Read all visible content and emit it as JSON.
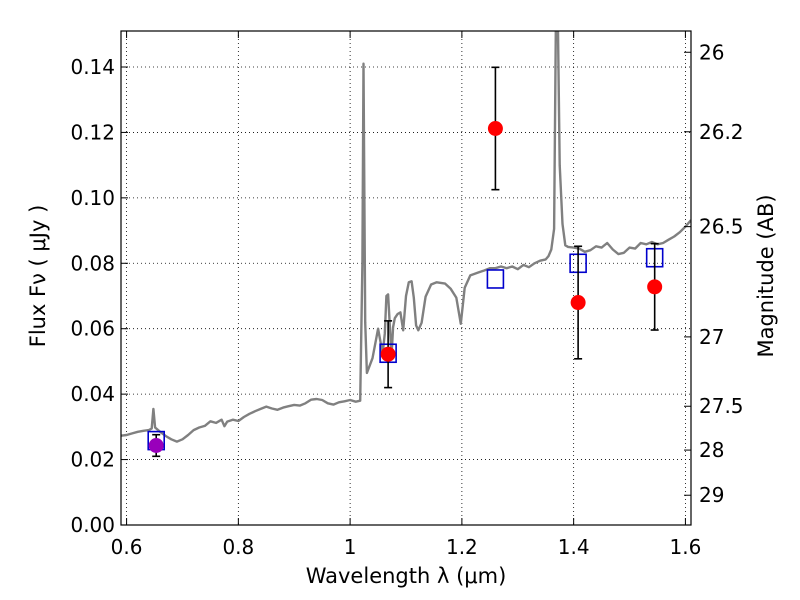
{
  "chart_data": {
    "type": "scatter",
    "xlabel": "Wavelength  λ (μm)",
    "ylabel": "Flux  Fν  ( μJy )",
    "y2label": "Magnitude (AB)",
    "xlim": [
      0.59,
      1.61
    ],
    "ylim": [
      0.0,
      0.151
    ],
    "grid": true,
    "x_ticks": [
      {
        "value": 0.6,
        "label": "0.6"
      },
      {
        "value": 0.8,
        "label": "0.8"
      },
      {
        "value": 1.0,
        "label": "1"
      },
      {
        "value": 1.2,
        "label": "1.2"
      },
      {
        "value": 1.4,
        "label": "1.4"
      },
      {
        "value": 1.6,
        "label": "1.6"
      }
    ],
    "y_ticks": [
      {
        "value": 0.0,
        "label": "0.00"
      },
      {
        "value": 0.02,
        "label": "0.02"
      },
      {
        "value": 0.04,
        "label": "0.04"
      },
      {
        "value": 0.06,
        "label": "0.06"
      },
      {
        "value": 0.08,
        "label": "0.08"
      },
      {
        "value": 0.1,
        "label": "0.10"
      },
      {
        "value": 0.12,
        "label": "0.12"
      },
      {
        "value": 0.14,
        "label": "0.14"
      }
    ],
    "y2_ticks": [
      {
        "flux": 0.1445,
        "label": "26"
      },
      {
        "flux": 0.1202,
        "label": "26.2"
      },
      {
        "flux": 0.0912,
        "label": "26.5"
      },
      {
        "flux": 0.0575,
        "label": "27"
      },
      {
        "flux": 0.0363,
        "label": "27.5"
      },
      {
        "flux": 0.0229,
        "label": "28"
      },
      {
        "flux": 0.0091,
        "label": "29"
      }
    ],
    "series": [
      {
        "kind": "spectrum",
        "color": "#808080",
        "points": [
          [
            0.59,
            0.0273
          ],
          [
            0.6,
            0.0275
          ],
          [
            0.61,
            0.028
          ],
          [
            0.62,
            0.0285
          ],
          [
            0.63,
            0.0288
          ],
          [
            0.64,
            0.029
          ],
          [
            0.645,
            0.0295
          ],
          [
            0.648,
            0.0355
          ],
          [
            0.651,
            0.0298
          ],
          [
            0.66,
            0.0285
          ],
          [
            0.67,
            0.0272
          ],
          [
            0.68,
            0.0262
          ],
          [
            0.69,
            0.0255
          ],
          [
            0.7,
            0.0262
          ],
          [
            0.71,
            0.0275
          ],
          [
            0.72,
            0.029
          ],
          [
            0.73,
            0.0298
          ],
          [
            0.74,
            0.0303
          ],
          [
            0.75,
            0.0317
          ],
          [
            0.76,
            0.0312
          ],
          [
            0.77,
            0.0322
          ],
          [
            0.775,
            0.0302
          ],
          [
            0.78,
            0.0316
          ],
          [
            0.79,
            0.0322
          ],
          [
            0.8,
            0.0318
          ],
          [
            0.81,
            0.033
          ],
          [
            0.82,
            0.034
          ],
          [
            0.83,
            0.0348
          ],
          [
            0.84,
            0.0355
          ],
          [
            0.85,
            0.0362
          ],
          [
            0.86,
            0.0356
          ],
          [
            0.87,
            0.0352
          ],
          [
            0.88,
            0.0359
          ],
          [
            0.89,
            0.0363
          ],
          [
            0.9,
            0.0367
          ],
          [
            0.91,
            0.0365
          ],
          [
            0.92,
            0.0372
          ],
          [
            0.93,
            0.0383
          ],
          [
            0.94,
            0.0385
          ],
          [
            0.95,
            0.0382
          ],
          [
            0.96,
            0.0372
          ],
          [
            0.97,
            0.0368
          ],
          [
            0.98,
            0.0375
          ],
          [
            0.99,
            0.0378
          ],
          [
            1.0,
            0.0382
          ],
          [
            1.01,
            0.0377
          ],
          [
            1.018,
            0.038
          ],
          [
            1.022,
            0.08
          ],
          [
            1.024,
            0.141
          ],
          [
            1.027,
            0.062
          ],
          [
            1.03,
            0.0465
          ],
          [
            1.04,
            0.051
          ],
          [
            1.05,
            0.06
          ],
          [
            1.055,
            0.0553
          ],
          [
            1.058,
            0.052
          ],
          [
            1.062,
            0.0585
          ],
          [
            1.065,
            0.07
          ],
          [
            1.068,
            0.0705
          ],
          [
            1.071,
            0.061
          ],
          [
            1.074,
            0.0515
          ],
          [
            1.077,
            0.0605
          ],
          [
            1.08,
            0.0632
          ],
          [
            1.085,
            0.0645
          ],
          [
            1.09,
            0.065
          ],
          [
            1.095,
            0.0595
          ],
          [
            1.1,
            0.07
          ],
          [
            1.105,
            0.0742
          ],
          [
            1.11,
            0.0745
          ],
          [
            1.114,
            0.0695
          ],
          [
            1.118,
            0.061
          ],
          [
            1.122,
            0.0595
          ],
          [
            1.128,
            0.0618
          ],
          [
            1.135,
            0.0698
          ],
          [
            1.145,
            0.0735
          ],
          [
            1.155,
            0.0742
          ],
          [
            1.17,
            0.0738
          ],
          [
            1.18,
            0.0722
          ],
          [
            1.19,
            0.0695
          ],
          [
            1.198,
            0.0615
          ],
          [
            1.205,
            0.0725
          ],
          [
            1.215,
            0.0763
          ],
          [
            1.23,
            0.0772
          ],
          [
            1.24,
            0.0778
          ],
          [
            1.25,
            0.0785
          ],
          [
            1.26,
            0.0785
          ],
          [
            1.27,
            0.079
          ],
          [
            1.28,
            0.0785
          ],
          [
            1.29,
            0.079
          ],
          [
            1.3,
            0.0782
          ],
          [
            1.31,
            0.0795
          ],
          [
            1.32,
            0.0788
          ],
          [
            1.33,
            0.08
          ],
          [
            1.34,
            0.0808
          ],
          [
            1.35,
            0.0812
          ],
          [
            1.355,
            0.0822
          ],
          [
            1.36,
            0.0842
          ],
          [
            1.365,
            0.0905
          ],
          [
            1.368,
            0.151
          ],
          [
            1.372,
            0.151
          ],
          [
            1.375,
            0.11
          ],
          [
            1.38,
            0.092
          ],
          [
            1.385,
            0.0855
          ],
          [
            1.39,
            0.085
          ],
          [
            1.4,
            0.0848
          ],
          [
            1.41,
            0.0845
          ],
          [
            1.42,
            0.0835
          ],
          [
            1.43,
            0.084
          ],
          [
            1.44,
            0.0852
          ],
          [
            1.45,
            0.0848
          ],
          [
            1.46,
            0.0862
          ],
          [
            1.47,
            0.0842
          ],
          [
            1.48,
            0.0828
          ],
          [
            1.49,
            0.0832
          ],
          [
            1.5,
            0.0848
          ],
          [
            1.51,
            0.0845
          ],
          [
            1.52,
            0.0862
          ],
          [
            1.53,
            0.0858
          ],
          [
            1.54,
            0.0865
          ],
          [
            1.55,
            0.0858
          ],
          [
            1.56,
            0.0862
          ],
          [
            1.57,
            0.0872
          ],
          [
            1.58,
            0.0882
          ],
          [
            1.59,
            0.0895
          ],
          [
            1.6,
            0.0912
          ],
          [
            1.61,
            0.0932
          ]
        ]
      },
      {
        "kind": "model-photometry",
        "marker": "open-square",
        "color": "#0000cc",
        "points": [
          [
            0.653,
            0.0258
          ],
          [
            1.068,
            0.0525
          ],
          [
            1.26,
            0.0752
          ],
          [
            1.408,
            0.08
          ],
          [
            1.545,
            0.0817
          ]
        ]
      },
      {
        "kind": "observed-photometry",
        "marker": "filled-circle",
        "color": "#ff0000",
        "points": [
          {
            "x": 1.068,
            "y": 0.0522,
            "err": 0.0102
          },
          {
            "x": 1.26,
            "y": 0.1212,
            "err": 0.0187
          },
          {
            "x": 1.408,
            "y": 0.068,
            "err": 0.0172
          },
          {
            "x": 1.545,
            "y": 0.0728,
            "err": 0.0132
          }
        ]
      },
      {
        "kind": "observed-photometry-optical",
        "marker": "filled-circle",
        "color": "#9900bb",
        "points": [
          {
            "x": 0.653,
            "y": 0.0243,
            "err": 0.0033
          }
        ]
      }
    ]
  }
}
